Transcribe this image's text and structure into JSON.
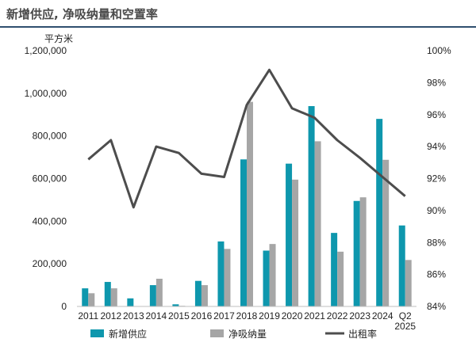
{
  "title": "新增供应, 净吸纳量和空置率",
  "colors": {
    "new_supply": "#0e97ad",
    "net_absorption": "#a6a6a6",
    "occupancy": "#4d4d4d",
    "title_rule": "#2f4f6f"
  },
  "chart_data": {
    "type": "bar",
    "title": "新增供应, 净吸纳量和空置率",
    "ylabel": "平方米",
    "categories": [
      "2011",
      "2012",
      "2013",
      "2014",
      "2015",
      "2016",
      "2017",
      "2018",
      "2019",
      "2020",
      "2021",
      "2022",
      "2023",
      "2024",
      "Q2 2025"
    ],
    "category_lines": [
      [
        "2011"
      ],
      [
        "2012"
      ],
      [
        "2013"
      ],
      [
        "2014"
      ],
      [
        "2015"
      ],
      [
        "2016"
      ],
      [
        "2017"
      ],
      [
        "2018"
      ],
      [
        "2019"
      ],
      [
        "2020"
      ],
      [
        "2021"
      ],
      [
        "2022"
      ],
      [
        "2023"
      ],
      [
        "2024"
      ],
      [
        "Q2",
        "2025"
      ]
    ],
    "series": [
      {
        "name": "新增供应",
        "type": "bar",
        "axis": "left",
        "color": "#0e97ad",
        "values": [
          85000,
          115000,
          38000,
          100000,
          10000,
          120000,
          305000,
          690000,
          262000,
          670000,
          940000,
          345000,
          495000,
          880000,
          380000
        ]
      },
      {
        "name": "净吸纳量",
        "type": "bar",
        "axis": "left",
        "color": "#a6a6a6",
        "values": [
          62000,
          85000,
          0,
          130000,
          3000,
          100000,
          270000,
          960000,
          293000,
          595000,
          775000,
          257000,
          512000,
          688000,
          218000
        ]
      },
      {
        "name": "出租率",
        "type": "line",
        "axis": "right",
        "color": "#4d4d4d",
        "values": [
          93.2,
          94.4,
          90.2,
          94.0,
          93.6,
          92.3,
          92.1,
          96.6,
          98.8,
          96.4,
          95.8,
          94.4,
          93.3,
          92.1,
          90.9
        ]
      }
    ],
    "y_left": {
      "min": 0,
      "max": 1200000,
      "ticks": [
        "0",
        "200,000",
        "400,000",
        "600,000",
        "800,000",
        "1,000,000",
        "1,200,000"
      ],
      "values": [
        0,
        200000,
        400000,
        600000,
        800000,
        1000000,
        1200000
      ]
    },
    "y_right": {
      "min": 84,
      "max": 100,
      "ticks": [
        "84%",
        "86%",
        "88%",
        "90%",
        "92%",
        "94%",
        "96%",
        "98%",
        "100%"
      ],
      "values": [
        84,
        86,
        88,
        90,
        92,
        94,
        96,
        98,
        100
      ]
    },
    "grid": false,
    "legend_position": "bottom"
  }
}
